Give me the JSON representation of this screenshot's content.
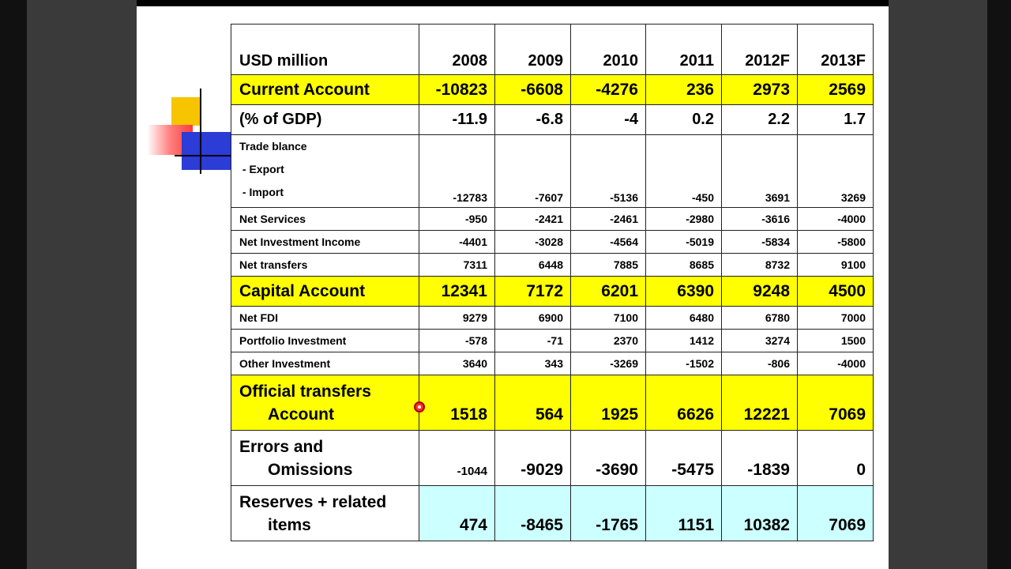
{
  "table": {
    "header": {
      "label": "USD million",
      "years": [
        "2008",
        "2009",
        "2010",
        "2011",
        "2012F",
        "2013F"
      ]
    },
    "current_account": {
      "label": "Current Account",
      "values": [
        "-10823",
        "-6608",
        "-4276",
        "236",
        "2973",
        "2569"
      ]
    },
    "pct_gdp": {
      "label": "(% of GDP)",
      "values": [
        "-11.9",
        "-6.8",
        "-4",
        "0.2",
        "2.2",
        "1.7"
      ]
    },
    "trade": {
      "label": "Trade blance",
      "export_label": " - Export",
      "import_label": " - Import",
      "values": [
        "-12783",
        "-7607",
        "-5136",
        "-450",
        "3691",
        "3269"
      ]
    },
    "net_services": {
      "label": "Net Services",
      "values": [
        "-950",
        "-2421",
        "-2461",
        "-2980",
        "-3616",
        "-4000"
      ]
    },
    "net_investment_income": {
      "label": "Net Investment Income",
      "values": [
        "-4401",
        "-3028",
        "-4564",
        "-5019",
        "-5834",
        "-5800"
      ]
    },
    "net_transfers": {
      "label": "Net transfers",
      "values": [
        "7311",
        "6448",
        "7885",
        "8685",
        "8732",
        "9100"
      ]
    },
    "capital_account": {
      "label": "Capital Account",
      "values": [
        "12341",
        "7172",
        "6201",
        "6390",
        "9248",
        "4500"
      ]
    },
    "net_fdi": {
      "label": "Net FDI",
      "values": [
        "9279",
        "6900",
        "7100",
        "6480",
        "6780",
        "7000"
      ]
    },
    "portfolio_investment": {
      "label": "Portfolio Investment",
      "values": [
        "-578",
        "-71",
        "2370",
        "1412",
        "3274",
        "1500"
      ]
    },
    "other_investment": {
      "label": "Other Investment",
      "values": [
        "3640",
        "343",
        "-3269",
        "-1502",
        "-806",
        "-4000"
      ]
    },
    "official_transfers": {
      "label_line1": "Official transfers",
      "label_line2": "Account",
      "values": [
        "1518",
        "564",
        "1925",
        "6626",
        "12221",
        "7069"
      ]
    },
    "errors_omissions": {
      "label_line1": "Errors and",
      "label_line2": "Omissions",
      "values": [
        "-1044",
        "-9029",
        "-3690",
        "-5475",
        "-1839",
        "0"
      ]
    },
    "reserves": {
      "label_line1": "Reserves + related",
      "label_line2": "items",
      "values": [
        "474",
        "-8465",
        "-1765",
        "1151",
        "10382",
        "7069"
      ]
    }
  },
  "colors": {
    "highlight": "#ffff00",
    "reserves": "#ccffff"
  }
}
